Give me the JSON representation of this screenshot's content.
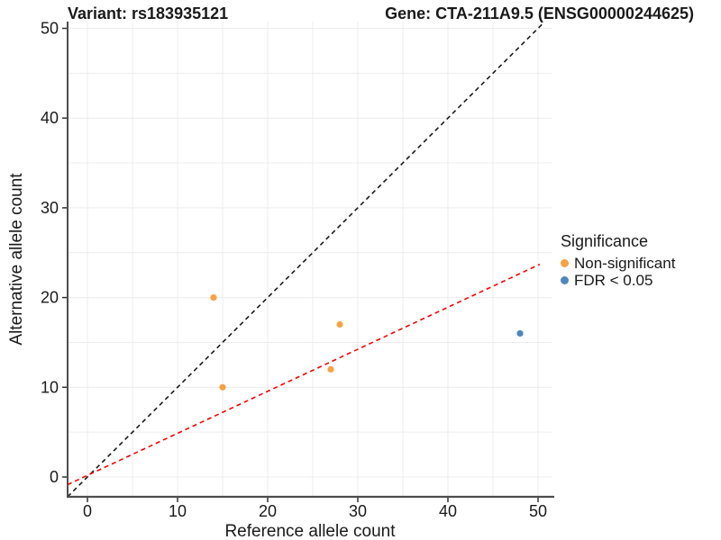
{
  "figure": {
    "titles": {
      "variant": "Variant: rs183935121",
      "gene": "Gene: CTA-211A9.5 (ENSG00000244625)"
    }
  },
  "chart_data": {
    "type": "scatter",
    "title_left": "Variant: rs183935121",
    "title_right": "Gene: CTA-211A9.5 (ENSG00000244625)",
    "xlabel": "Reference allele count",
    "ylabel": "Alternative allele count",
    "xlim": [
      -2.2,
      51.5
    ],
    "ylim": [
      -2.2,
      50.7
    ],
    "xticks": [
      0,
      10,
      20,
      30,
      40,
      50
    ],
    "yticks": [
      0,
      10,
      20,
      30,
      40,
      50
    ],
    "gridlines_every": 5,
    "grid": true,
    "points": [
      {
        "x": 14,
        "y": 20,
        "group": "Non-significant"
      },
      {
        "x": 15,
        "y": 10,
        "group": "Non-significant"
      },
      {
        "x": 27,
        "y": 12,
        "group": "Non-significant"
      },
      {
        "x": 28,
        "y": 17,
        "group": "Non-significant"
      },
      {
        "x": 48,
        "y": 16,
        "group": "FDR < 0.05"
      }
    ],
    "lines": [
      {
        "name": "identity-line",
        "style": "dashed",
        "color": "#1a1a1a",
        "x1": -2.2,
        "y1": -2.2,
        "x2": 50.7,
        "y2": 50.7
      },
      {
        "name": "fit-line",
        "style": "dashed",
        "color": "#ff0000",
        "x1": -2.2,
        "y1": -0.85,
        "x2": 50.2,
        "y2": 23.7
      }
    ],
    "legend": {
      "title": "Significance",
      "position": "right",
      "entries": [
        {
          "label": "Non-significant",
          "color": "#F9A242"
        },
        {
          "label": "FDR < 0.05",
          "color": "#4F86BE"
        }
      ]
    },
    "colors": {
      "grid": "#ECECEC",
      "axis": "#4D4D4D",
      "tick": "#333333",
      "text": "#1A1A1A"
    }
  }
}
